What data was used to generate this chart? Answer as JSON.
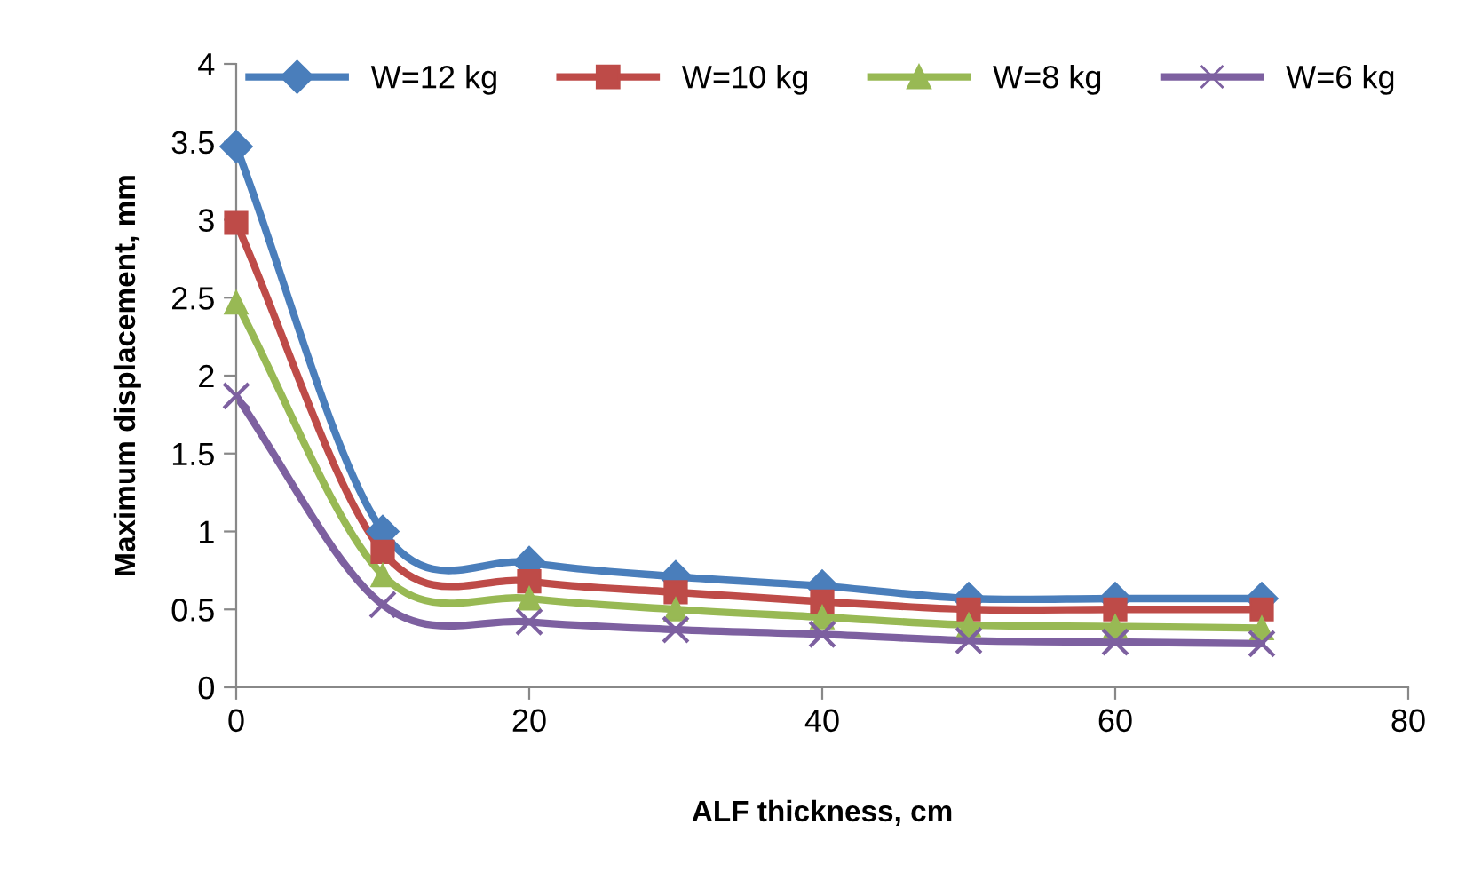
{
  "chart_data": {
    "type": "line",
    "xlabel": "ALF thickness, cm",
    "ylabel": "Maximum displacement, mm",
    "x": [
      0,
      10,
      20,
      30,
      40,
      50,
      60,
      70
    ],
    "series": [
      {
        "name": "W=12 kg",
        "color": "#4a7ebb",
        "marker": "diamond",
        "values": [
          3.47,
          1.0,
          0.8,
          0.71,
          0.65,
          0.57,
          0.57,
          0.57
        ]
      },
      {
        "name": "W=10 kg",
        "color": "#be4b48",
        "marker": "square",
        "values": [
          2.98,
          0.87,
          0.68,
          0.61,
          0.55,
          0.5,
          0.5,
          0.5
        ]
      },
      {
        "name": "W=8 kg",
        "color": "#98b954",
        "marker": "triangle",
        "values": [
          2.47,
          0.72,
          0.57,
          0.5,
          0.45,
          0.4,
          0.39,
          0.38
        ]
      },
      {
        "name": "W=6 kg",
        "color": "#7d60a0",
        "marker": "cross",
        "values": [
          1.87,
          0.53,
          0.42,
          0.37,
          0.34,
          0.3,
          0.29,
          0.28
        ]
      }
    ],
    "xlim": [
      0,
      80
    ],
    "xticks": [
      0,
      20,
      40,
      60,
      80
    ],
    "ylim": [
      0,
      4
    ],
    "yticks": [
      0,
      0.5,
      1,
      1.5,
      2,
      2.5,
      3,
      3.5,
      4
    ],
    "grid": false,
    "legend": "top"
  }
}
